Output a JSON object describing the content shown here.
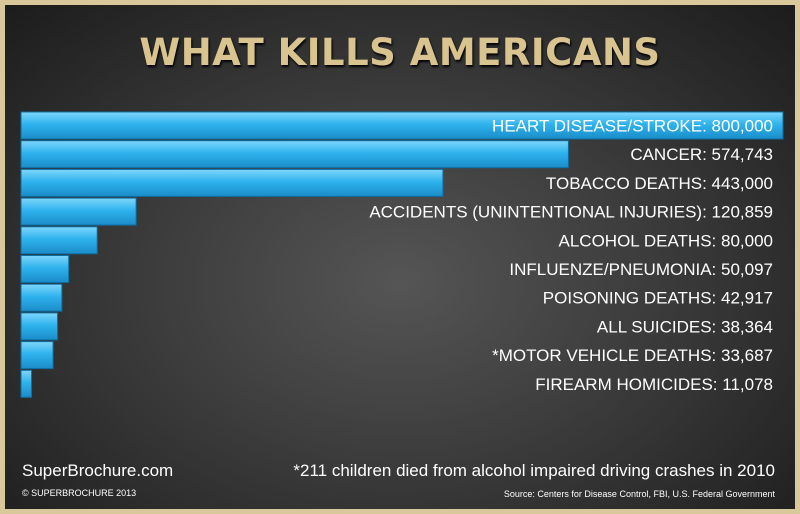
{
  "header": {
    "title": "WHAT KILLS AMERICANS"
  },
  "chart_data": {
    "type": "bar",
    "orientation": "horizontal",
    "categories": [
      "HEART DISEASE/STROKE",
      "CANCER",
      "TOBACCO DEATHS",
      "ACCIDENTS (UNINTENTIONAL INJURIES)",
      "ALCOHOL DEATHS",
      "INFLUENZE/PNEUMONIA",
      "POISONING DEATHS",
      "ALL SUICIDES",
      "*MOTOR VEHICLE DEATHS",
      "FIREARM HOMICIDES"
    ],
    "values": [
      800000,
      574743,
      443000,
      120859,
      80000,
      50097,
      42917,
      38364,
      33687,
      11078
    ],
    "labels": [
      "HEART DISEASE/STROKE: 800,000",
      "CANCER: 574,743",
      "TOBACCO DEATHS: 443,000",
      "ACCIDENTS (UNINTENTIONAL INJURIES): 120,859",
      "ALCOHOL DEATHS: 80,000",
      "INFLUENZE/PNEUMONIA: 50,097",
      "POISONING DEATHS: 42,917",
      "ALL SUICIDES: 38,364",
      "*MOTOR VEHICLE DEATHS: 33,687",
      "FIREARM HOMICIDES: 11,078"
    ],
    "xlim": [
      0,
      800000
    ],
    "bar_color": "#29aee8",
    "title": "WHAT KILLS AMERICANS",
    "xlabel": "",
    "ylabel": "",
    "grid": false
  },
  "footer": {
    "site": "SuperBrochure.com",
    "copyright": "© SUPERBROCHURE 2013",
    "footnote": "*211 children died from alcohol impaired driving crashes in 2010",
    "source": "Source: Centers for Disease Control, FBI, U.S. Federal Government"
  },
  "colors": {
    "title": "#d9c38e",
    "frame": "#d8c89a",
    "bar": "#29aee8",
    "text": "#ffffff"
  }
}
